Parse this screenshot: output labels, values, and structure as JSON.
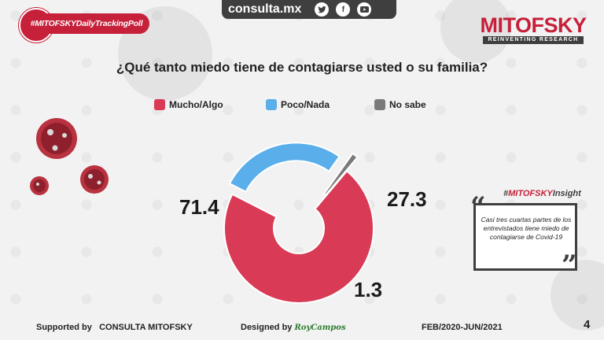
{
  "header": {
    "hashtag": "#MITOFSKYDailyTrackingPoll",
    "site": "consulta.mx",
    "social_icons": [
      "twitter-icon",
      "facebook-icon",
      "youtube-icon"
    ],
    "logo_name": "MITOFSKY",
    "logo_tagline": "REINVENTING RESEARCH"
  },
  "chart_data": {
    "type": "pie",
    "title": "¿Qué tanto miedo tiene de contagiarse usted o su familia?",
    "categories": [
      "Mucho/Algo",
      "Poco/Nada",
      "No sabe"
    ],
    "values": [
      71.4,
      27.3,
      1.3
    ],
    "labels": [
      "71.4",
      "27.3",
      "1.3"
    ],
    "colors": [
      "#d93a55",
      "#5aaeea",
      "#7a7a7a"
    ],
    "legend_position": "top"
  },
  "insight": {
    "title_prefix": "#",
    "title_brand": "MITOFSKY",
    "title_suffix": "Insight",
    "text": "Casi tres cuartas partes de los entrevistados tiene miedo de contagiarse de Covid-19"
  },
  "footer": {
    "supported_label": "Supported by",
    "supported_by": "CONSULTA MITOFSKY",
    "designed_label": "Designed by",
    "designer": "RoyCampos",
    "period": "FEB/2020-JUN/2021",
    "page": "4"
  }
}
